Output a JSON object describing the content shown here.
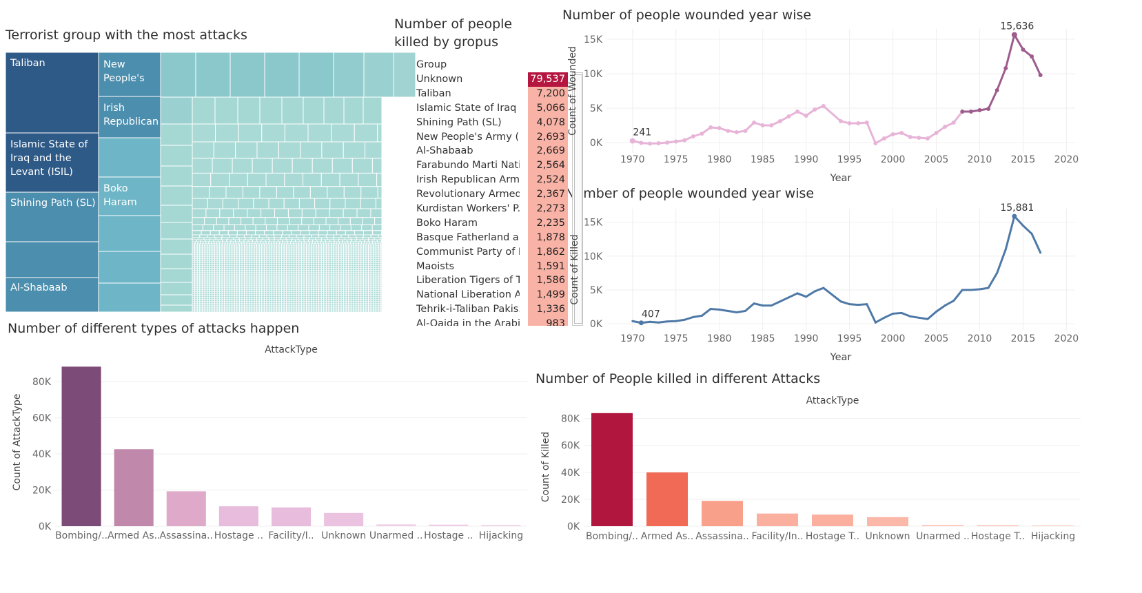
{
  "treemap": {
    "title": "Terrorist group with the most attacks",
    "labels": {
      "taliban": "Taliban",
      "isil": "Islamic State of Iraq and the Levant (ISIL)",
      "shining": "Shining Path (SL)",
      "shabaab": "Al-Shabaab",
      "npa": "New People's",
      "ira": "Irish Republican",
      "boko": "Boko Haram"
    },
    "colors": {
      "dark": "#2e5a87",
      "mid": "#4c8eae",
      "light": "#6eb6c7",
      "pale": "#a3d6d3"
    }
  },
  "killed_table": {
    "title": "Number of people killed by gropus",
    "column_header": "Group",
    "rows": [
      {
        "group": "Unknown",
        "killed": "79,537"
      },
      {
        "group": "Taliban",
        "killed": "7,200"
      },
      {
        "group": "Islamic State of Iraq ..",
        "killed": "5,066"
      },
      {
        "group": "Shining Path (SL)",
        "killed": "4,078"
      },
      {
        "group": "New People's Army (..",
        "killed": "2,693"
      },
      {
        "group": "Al-Shabaab",
        "killed": "2,669"
      },
      {
        "group": "Farabundo Marti Nati..",
        "killed": "2,564"
      },
      {
        "group": "Irish Republican Arm..",
        "killed": "2,524"
      },
      {
        "group": "Revolutionary Armed ..",
        "killed": "2,367"
      },
      {
        "group": "Kurdistan Workers' P..",
        "killed": "2,273"
      },
      {
        "group": "Boko Haram",
        "killed": "2,235"
      },
      {
        "group": "Basque Fatherland an..",
        "killed": "1,878"
      },
      {
        "group": "Communist Party of I..",
        "killed": "1,862"
      },
      {
        "group": "Maoists",
        "killed": "1,591"
      },
      {
        "group": "Liberation Tigers of T..",
        "killed": "1,586"
      },
      {
        "group": "National Liberation A..",
        "killed": "1,499"
      },
      {
        "group": "Tehrik-i-Taliban Pakis..",
        "killed": "1,336"
      },
      {
        "group": "Al-Qaida in the Arabia..",
        "killed": "983"
      }
    ],
    "colors": {
      "top": "#b5163f",
      "rest": "#f9b3a6"
    }
  },
  "chart_data": [
    {
      "type": "line",
      "title": "Number of people wounded year wise",
      "xlabel": "Year",
      "ylabel": "Count of Wounded",
      "xlim": [
        1967,
        2021
      ],
      "ylim": [
        -1500,
        16500
      ],
      "xticks": [
        1970,
        1975,
        1980,
        1985,
        1990,
        1995,
        2000,
        2005,
        2010,
        2015,
        2020
      ],
      "yticks": [
        0,
        5000,
        10000,
        15000
      ],
      "ytick_labels": [
        "0K",
        "5K",
        "10K",
        "15K"
      ],
      "annotations": [
        {
          "label": "241",
          "x": 1970
        },
        {
          "label": "15,636",
          "x": 2014
        }
      ],
      "series": [
        {
          "x": [
            1970,
            1971,
            1972,
            1973,
            1974,
            1975,
            1976,
            1977,
            1978,
            1979,
            1980,
            1981,
            1982,
            1983,
            1984,
            1985,
            1986,
            1987,
            1988,
            1989,
            1990,
            1991,
            1992,
            1994,
            1995,
            1996,
            1997,
            1998,
            1999,
            2000,
            2001,
            2002,
            2003,
            2004,
            2005,
            2006,
            2007,
            2008,
            2009,
            2010,
            2011,
            2012,
            2013,
            2014,
            2015,
            2016,
            2017
          ],
          "y": [
            241,
            -50,
            -150,
            -100,
            0,
            150,
            350,
            900,
            1300,
            2200,
            2100,
            1700,
            1500,
            1700,
            2900,
            2500,
            2500,
            3100,
            3800,
            4500,
            3900,
            4800,
            5300,
            3100,
            2800,
            2800,
            2900,
            -100,
            600,
            1200,
            1400,
            800,
            700,
            600,
            1400,
            2300,
            2900,
            4500,
            4500,
            4700,
            4900,
            7600,
            10800,
            15636,
            13500,
            12500,
            9800
          ],
          "colors": {
            "light": "#e7b4d8",
            "dark": "#9d5c8c"
          }
        }
      ]
    },
    {
      "type": "line",
      "title": "Number of people wounded year wise",
      "xlabel": "Year",
      "ylabel": "Count of Killed",
      "xlim": [
        1967,
        2021
      ],
      "ylim": [
        -1000,
        17000
      ],
      "xticks": [
        1970,
        1975,
        1980,
        1985,
        1990,
        1995,
        2000,
        2005,
        2010,
        2015,
        2020
      ],
      "yticks": [
        0,
        5000,
        10000,
        15000
      ],
      "ytick_labels": [
        "0K",
        "5K",
        "10K",
        "15K"
      ],
      "annotations": [
        {
          "label": "407",
          "x": 1971
        },
        {
          "label": "15,881",
          "x": 2014
        }
      ],
      "series": [
        {
          "x": [
            1970,
            1971,
            1972,
            1973,
            1974,
            1975,
            1976,
            1977,
            1978,
            1979,
            1980,
            1981,
            1982,
            1983,
            1984,
            1985,
            1986,
            1987,
            1988,
            1989,
            1990,
            1991,
            1992,
            1994,
            1995,
            1996,
            1997,
            1998,
            1999,
            2000,
            2001,
            2002,
            2003,
            2004,
            2005,
            2006,
            2007,
            2008,
            2009,
            2010,
            2011,
            2012,
            2013,
            2014,
            2015,
            2016,
            2017
          ],
          "y": [
            400,
            150,
            300,
            200,
            350,
            400,
            600,
            1000,
            1200,
            2200,
            2100,
            1900,
            1700,
            1900,
            3000,
            2700,
            2700,
            3300,
            3900,
            4500,
            4000,
            4800,
            5300,
            3300,
            2900,
            2800,
            2900,
            200,
            900,
            1500,
            1600,
            1100,
            900,
            700,
            1800,
            2700,
            3400,
            5000,
            5000,
            5100,
            5300,
            7500,
            11000,
            15881,
            14500,
            13300,
            10500
          ],
          "color": "#4e79a7"
        }
      ]
    },
    {
      "type": "bar",
      "title": "Number of different types of attacks happen",
      "xlabel": "AttackType",
      "ylabel": "Count of AttackType",
      "categories": [
        "Bombing/..",
        "Armed As..",
        "Assassina..",
        "Hostage ..",
        "Facility/I..",
        "Unknown",
        "Unarmed ..",
        "Hostage ..",
        "Hijacking"
      ],
      "values": [
        88300,
        42600,
        19300,
        11000,
        10400,
        7300,
        1000,
        900,
        660
      ],
      "ylim": [
        0,
        93000
      ],
      "yticks": [
        0,
        20000,
        40000,
        60000,
        80000
      ],
      "ytick_labels": [
        "0K",
        "20K",
        "40K",
        "60K",
        "80K"
      ],
      "colors": [
        "#7d4b78",
        "#c088ab",
        "#dfaac9",
        "#e8bcdc",
        "#e8bcdc",
        "#ebc3e0",
        "#f0cfe6",
        "#f0cfe6",
        "#f0cfe6"
      ]
    },
    {
      "type": "bar",
      "title": "Number of People killed in different Attacks",
      "xlabel": "AttackType",
      "ylabel": "Count of Killed",
      "categories": [
        "Bombing/..",
        "Armed As..",
        "Assassina..",
        "Facility/In..",
        "Hostage T..",
        "Unknown",
        "Unarmed ..",
        "Hostage T..",
        "Hijacking"
      ],
      "values": [
        84000,
        40000,
        18800,
        9400,
        8600,
        6700,
        880,
        750,
        480
      ],
      "ylim": [
        0,
        88000
      ],
      "yticks": [
        0,
        20000,
        40000,
        60000,
        80000
      ],
      "ytick_labels": [
        "0K",
        "20K",
        "40K",
        "60K",
        "80K"
      ],
      "colors": [
        "#b0163e",
        "#f06a56",
        "#f9a08b",
        "#fbb09f",
        "#fbb09f",
        "#fbb7a8",
        "#fcc3b5",
        "#fcc3b5",
        "#fcc3b5"
      ]
    }
  ]
}
